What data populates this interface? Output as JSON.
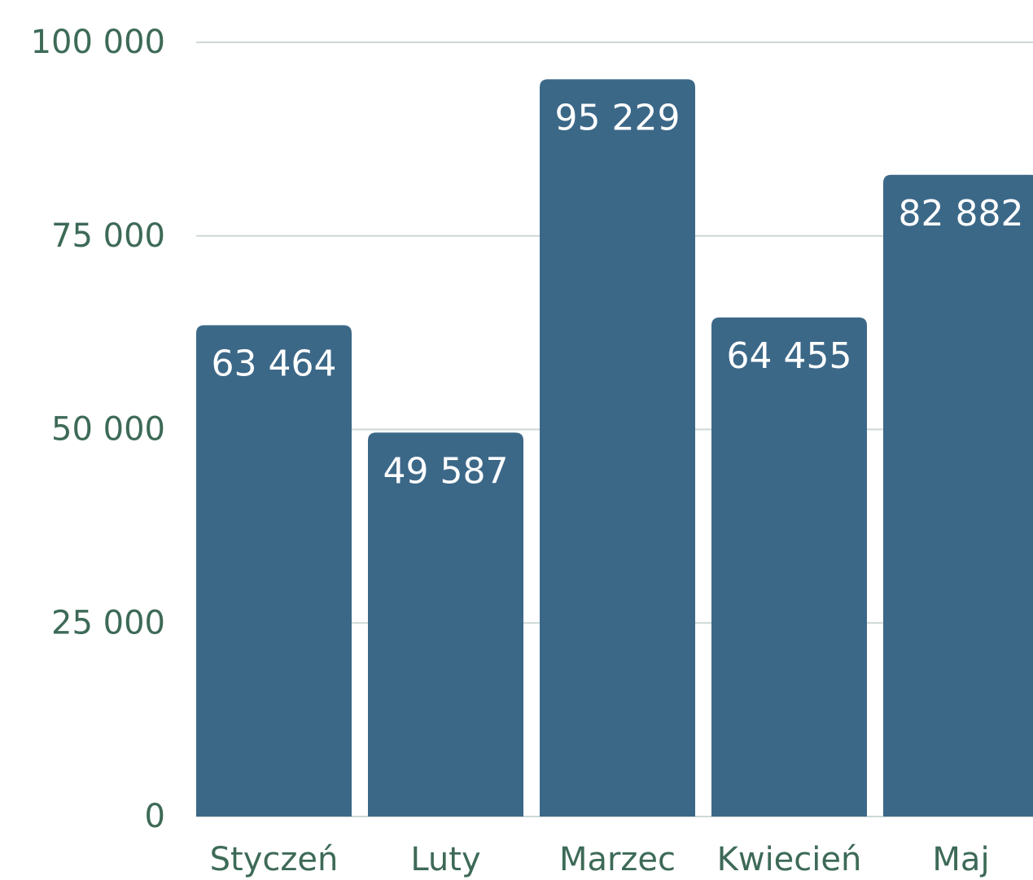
{
  "chart_data": {
    "type": "bar",
    "categories": [
      "Styczeń",
      "Luty",
      "Marzec",
      "Kwiecień",
      "Maj"
    ],
    "values": [
      63464,
      49587,
      95229,
      64455,
      82882
    ],
    "value_labels": [
      "63 464",
      "49 587",
      "95 229",
      "64 455",
      "82 882"
    ],
    "color": "#3c6888",
    "ylim": [
      0,
      100000
    ],
    "yticks": [
      0,
      {
        "value": 25000,
        "label": "25 000"
      },
      {
        "value": 50000,
        "label": "50 000"
      },
      {
        "value": 75000,
        "label": "75 000"
      },
      {
        "value": 100000,
        "label": "100 000"
      }
    ],
    "grid": true
  }
}
